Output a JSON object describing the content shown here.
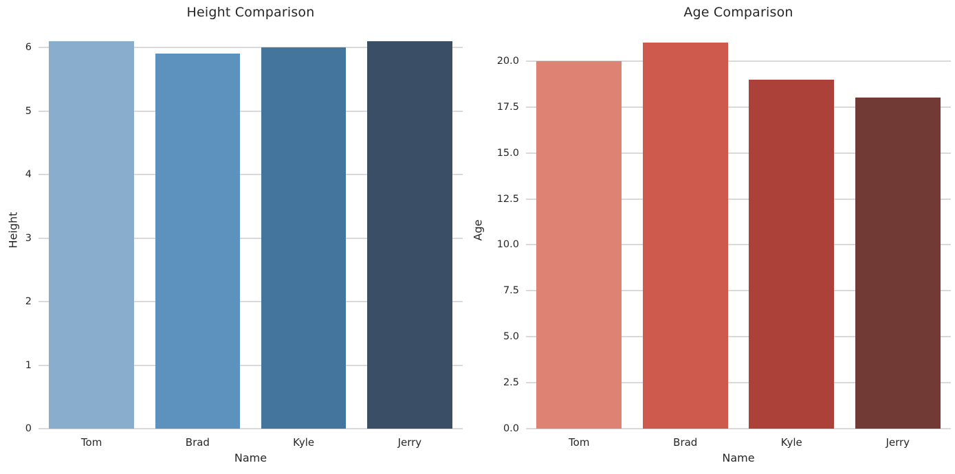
{
  "style": {
    "background_color": "#ffffff",
    "text_color": "#262626",
    "grid_color": "#d9d9d9"
  },
  "chart_data": [
    {
      "type": "bar",
      "title": "Height Comparison",
      "xlabel": "Name",
      "ylabel": "Height",
      "categories": [
        "Tom",
        "Brad",
        "Kyle",
        "Jerry"
      ],
      "values": [
        6.1,
        5.9,
        6.0,
        6.1
      ],
      "bar_colors": [
        "#89aecd",
        "#5e92be",
        "#44759c",
        "#3a4f65"
      ],
      "yticks": [
        0,
        1,
        2,
        3,
        4,
        5,
        6
      ],
      "ytick_labels": [
        "0",
        "1",
        "2",
        "3",
        "4",
        "5",
        "6"
      ],
      "ylim": [
        0,
        6.25
      ],
      "grid": true,
      "legend": null
    },
    {
      "type": "bar",
      "title": "Age Comparison",
      "xlabel": "Name",
      "ylabel": "Age",
      "categories": [
        "Tom",
        "Brad",
        "Kyle",
        "Jerry"
      ],
      "values": [
        20,
        21,
        19,
        18
      ],
      "bar_colors": [
        "#de8374",
        "#cd5a4d",
        "#ab4139",
        "#713a35"
      ],
      "yticks": [
        0,
        2.5,
        5,
        7.5,
        10,
        12.5,
        15,
        17.5,
        20
      ],
      "ytick_labels": [
        "0.0",
        "2.5",
        "5.0",
        "7.5",
        "10.0",
        "12.5",
        "15.0",
        "17.5",
        "20.0"
      ],
      "ylim": [
        0,
        21.6
      ],
      "grid": true,
      "legend": null
    }
  ]
}
